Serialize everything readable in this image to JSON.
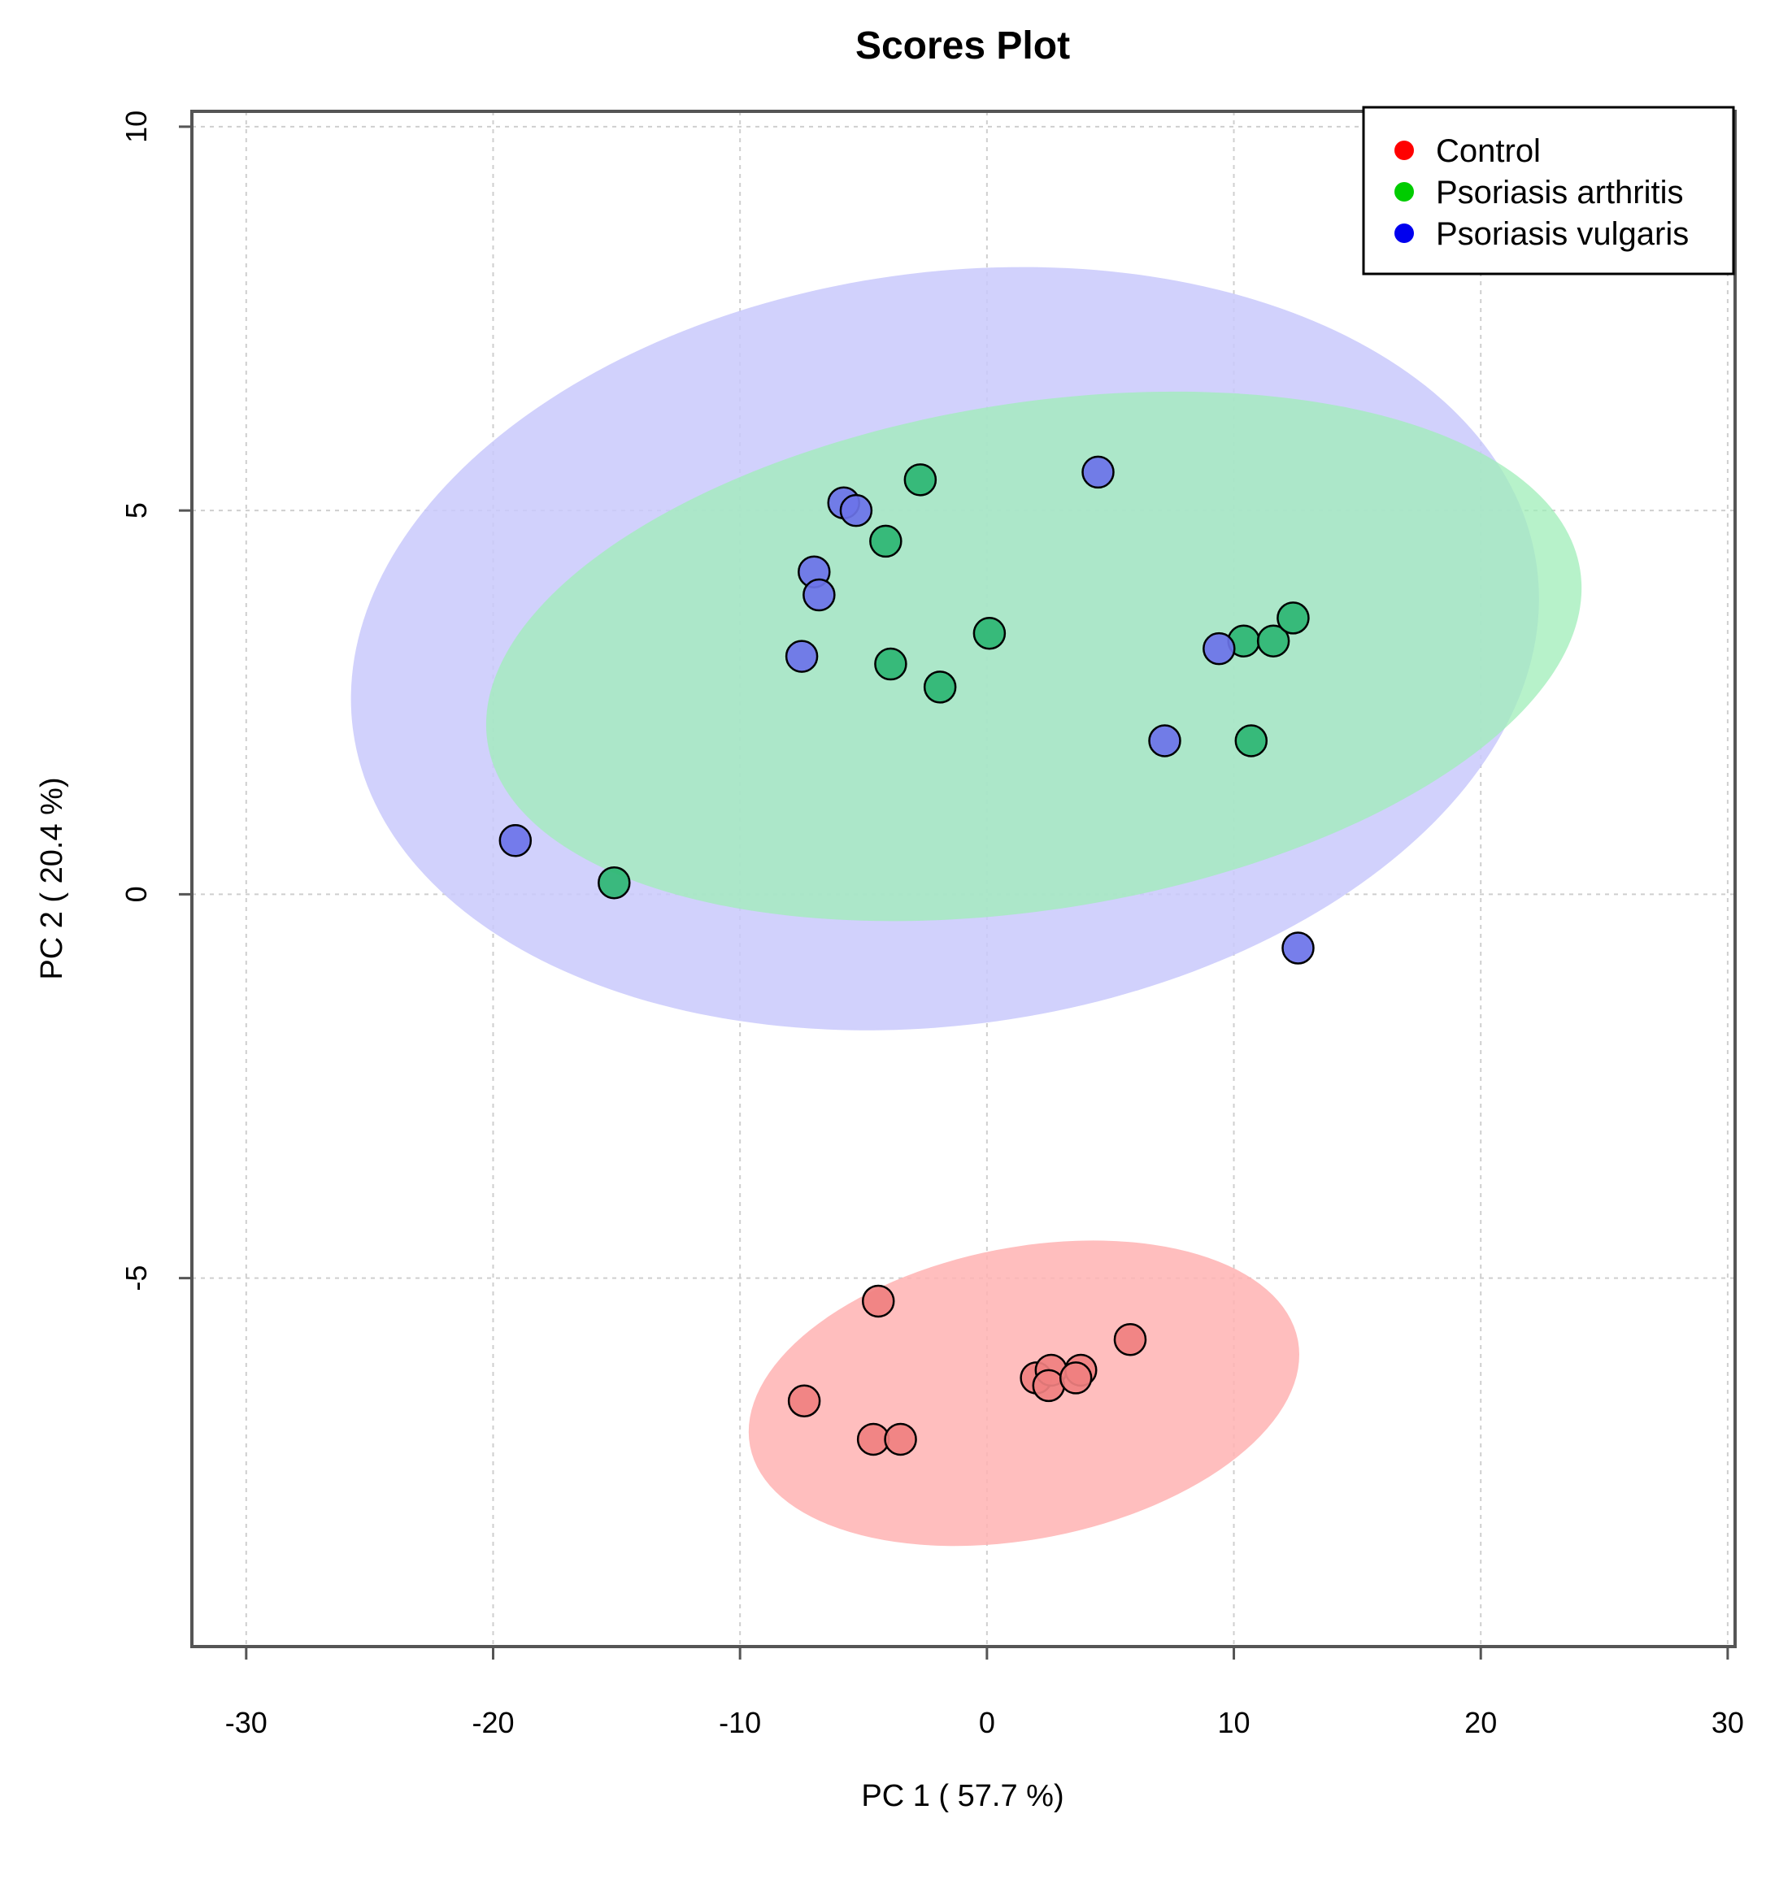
{
  "chart_data": {
    "type": "scatter",
    "title": "Scores Plot",
    "xlabel": "PC 1 ( 57.7 %)",
    "ylabel": "PC 2 ( 20.4 %)",
    "xlim": [
      -32.2,
      30.3
    ],
    "ylim": [
      -9.8,
      10.2
    ],
    "x_ticks": [
      -30,
      -20,
      -10,
      0,
      10,
      20,
      30
    ],
    "y_ticks": [
      10,
      5,
      0,
      -5
    ],
    "grid": true,
    "legend_position": "top-right",
    "series": [
      {
        "name": "Control",
        "color": "#ff0000",
        "point_color": "#f08080",
        "ellipse_color": "#ffb3b3",
        "ellipse": {
          "cx": 1.5,
          "cy": -6.5,
          "rx": 11.3,
          "ry": 1.9,
          "angle_deg": 11
        },
        "points": [
          {
            "x": -4.4,
            "y": -5.3
          },
          {
            "x": -7.4,
            "y": -6.6
          },
          {
            "x": -4.6,
            "y": -7.1
          },
          {
            "x": -3.5,
            "y": -7.1
          },
          {
            "x": 2.0,
            "y": -6.3
          },
          {
            "x": 2.6,
            "y": -6.2
          },
          {
            "x": 2.5,
            "y": -6.4
          },
          {
            "x": 3.8,
            "y": -6.2
          },
          {
            "x": 3.6,
            "y": -6.3
          },
          {
            "x": 5.8,
            "y": -5.8
          }
        ]
      },
      {
        "name": "Psoriasis arthritis",
        "color": "#00cc00",
        "point_color": "#2db673",
        "ellipse_color": "#9fedb8",
        "ellipse": {
          "cx": 1.9,
          "cy": 3.1,
          "rx": 22.4,
          "ry": 3.3,
          "angle_deg": 9
        },
        "points": [
          {
            "x": -2.7,
            "y": 5.4
          },
          {
            "x": -4.1,
            "y": 4.6
          },
          {
            "x": 0.1,
            "y": 3.4
          },
          {
            "x": -3.9,
            "y": 3.0
          },
          {
            "x": -1.9,
            "y": 2.7
          },
          {
            "x": 10.4,
            "y": 3.3
          },
          {
            "x": 11.6,
            "y": 3.3
          },
          {
            "x": 12.4,
            "y": 3.6
          },
          {
            "x": 10.7,
            "y": 2.0
          },
          {
            "x": -15.1,
            "y": 0.15
          }
        ]
      },
      {
        "name": "Psoriasis vulgaris",
        "color": "#0000ee",
        "point_color": "#6b73e9",
        "ellipse_color": "#c9c9fb",
        "ellipse": {
          "cx": -1.7,
          "cy": 3.2,
          "rx": 24.2,
          "ry": 4.9,
          "angle_deg": 8
        },
        "points": [
          {
            "x": 4.5,
            "y": 5.5
          },
          {
            "x": -5.8,
            "y": 5.1
          },
          {
            "x": -5.3,
            "y": 5.0
          },
          {
            "x": -7.0,
            "y": 4.2
          },
          {
            "x": -6.8,
            "y": 3.9
          },
          {
            "x": -7.5,
            "y": 3.1
          },
          {
            "x": 9.4,
            "y": 3.2
          },
          {
            "x": 7.2,
            "y": 2.0
          },
          {
            "x": -19.1,
            "y": 0.7
          },
          {
            "x": 12.6,
            "y": -0.7
          }
        ]
      }
    ]
  }
}
